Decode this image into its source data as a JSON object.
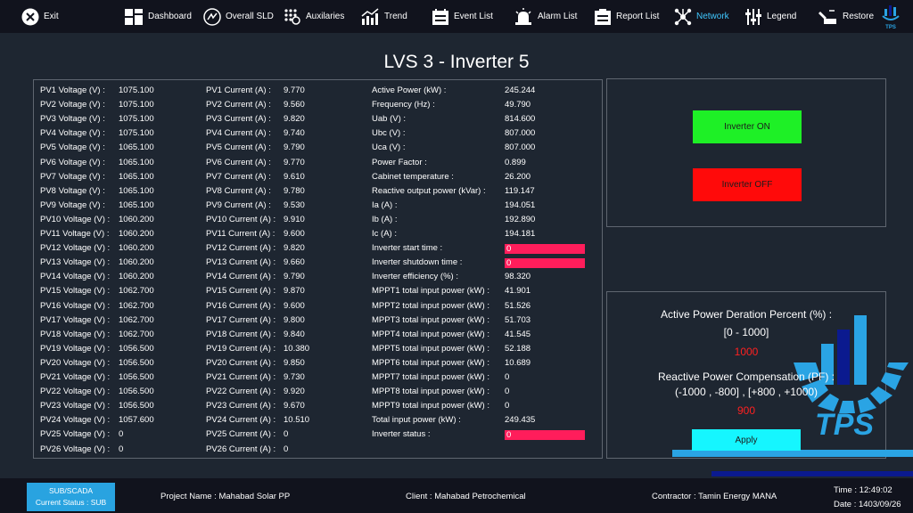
{
  "toolbar": {
    "items": [
      {
        "label": "Exit",
        "icon": "close-icon"
      },
      {
        "label": "Dashboard",
        "icon": "dashboard-icon"
      },
      {
        "label": "Overall SLD",
        "icon": "sld-icon"
      },
      {
        "label": "Auxilaries",
        "icon": "auxiliaries-icon"
      },
      {
        "label": "Trend",
        "icon": "trend-icon"
      },
      {
        "label": "Event List",
        "icon": "event-list-icon"
      },
      {
        "label": "Alarm List",
        "icon": "alarm-icon"
      },
      {
        "label": "Report List",
        "icon": "report-icon"
      },
      {
        "label": "Network",
        "icon": "network-icon"
      },
      {
        "label": "Legend",
        "icon": "legend-icon"
      },
      {
        "label": "Restore",
        "icon": "restore-icon"
      }
    ],
    "logo_text": "TPS"
  },
  "title": "LVS 3 - Inverter 5",
  "pv_voltages": [
    {
      "label": "PV1 Voltage (V) :",
      "value": "1075.100"
    },
    {
      "label": "PV2 Voltage (V) :",
      "value": "1075.100"
    },
    {
      "label": "PV3 Voltage (V) :",
      "value": "1075.100"
    },
    {
      "label": "PV4 Voltage (V) :",
      "value": "1075.100"
    },
    {
      "label": "PV5 Voltage (V) :",
      "value": "1065.100"
    },
    {
      "label": "PV6 Voltage (V) :",
      "value": "1065.100"
    },
    {
      "label": "PV7 Voltage (V) :",
      "value": "1065.100"
    },
    {
      "label": "PV8 Voltage (V) :",
      "value": "1065.100"
    },
    {
      "label": "PV9 Voltage (V) :",
      "value": "1065.100"
    },
    {
      "label": "PV10 Voltage (V) :",
      "value": "1060.200"
    },
    {
      "label": "PV11 Voltage (V) :",
      "value": "1060.200"
    },
    {
      "label": "PV12 Voltage (V) :",
      "value": "1060.200"
    },
    {
      "label": "PV13 Voltage (V) :",
      "value": "1060.200"
    },
    {
      "label": "PV14 Voltage (V) :",
      "value": "1060.200"
    },
    {
      "label": "PV15 Voltage (V) :",
      "value": "1062.700"
    },
    {
      "label": "PV16 Voltage (V) :",
      "value": "1062.700"
    },
    {
      "label": "PV17 Voltage (V) :",
      "value": "1062.700"
    },
    {
      "label": "PV18 Voltage (V) :",
      "value": "1062.700"
    },
    {
      "label": "PV19 Voltage (V) :",
      "value": "1056.500"
    },
    {
      "label": "PV20 Voltage (V) :",
      "value": "1056.500"
    },
    {
      "label": "PV21 Voltage (V) :",
      "value": "1056.500"
    },
    {
      "label": "PV22 Voltage (V) :",
      "value": "1056.500"
    },
    {
      "label": "PV23 Voltage (V) :",
      "value": "1056.500"
    },
    {
      "label": "PV24 Voltage (V) :",
      "value": "1057.600"
    },
    {
      "label": "PV25 Voltage (V) :",
      "value": "0"
    },
    {
      "label": "PV26 Voltage (V) :",
      "value": "0"
    }
  ],
  "pv_currents": [
    {
      "label": "PV1 Current (A) :",
      "value": "9.770"
    },
    {
      "label": "PV2 Current (A) :",
      "value": "9.560"
    },
    {
      "label": "PV3 Current (A) :",
      "value": "9.820"
    },
    {
      "label": "PV4 Current (A) :",
      "value": "9.740"
    },
    {
      "label": "PV5 Current (A) :",
      "value": "9.790"
    },
    {
      "label": "PV6 Current (A) :",
      "value": "9.770"
    },
    {
      "label": "PV7 Current (A) :",
      "value": "9.610"
    },
    {
      "label": "PV8 Current (A) :",
      "value": "9.780"
    },
    {
      "label": "PV9 Current (A) :",
      "value": "9.530"
    },
    {
      "label": "PV10 Current (A) :",
      "value": "9.910"
    },
    {
      "label": "PV11 Current (A) :",
      "value": "9.600"
    },
    {
      "label": "PV12 Current (A) :",
      "value": "9.820"
    },
    {
      "label": "PV13 Current (A) :",
      "value": "9.660"
    },
    {
      "label": "PV14 Current (A) :",
      "value": "9.790"
    },
    {
      "label": "PV15 Current (A) :",
      "value": "9.870"
    },
    {
      "label": "PV16 Current (A) :",
      "value": "9.600"
    },
    {
      "label": "PV17 Current (A) :",
      "value": "9.800"
    },
    {
      "label": "PV18 Current (A) :",
      "value": "9.840"
    },
    {
      "label": "PV19 Current (A) :",
      "value": "10.380"
    },
    {
      "label": "PV20 Current (A) :",
      "value": "9.850"
    },
    {
      "label": "PV21 Current (A) :",
      "value": "9.730"
    },
    {
      "label": "PV22 Current (A) :",
      "value": "9.920"
    },
    {
      "label": "PV23 Current (A) :",
      "value": "9.670"
    },
    {
      "label": "PV24 Current (A) :",
      "value": "10.510"
    },
    {
      "label": "PV25 Current (A) :",
      "value": "0"
    },
    {
      "label": "PV26 Current (A) :",
      "value": "0"
    }
  ],
  "measurements": [
    {
      "label": "Active Power (kW) :",
      "value": "245.244"
    },
    {
      "label": "Frequency (Hz) :",
      "value": "49.790"
    },
    {
      "label": "Uab (V) :",
      "value": "814.600"
    },
    {
      "label": "Ubc (V) :",
      "value": "807.000"
    },
    {
      "label": "Uca (V) :",
      "value": "807.000"
    },
    {
      "label": "Power Factor :",
      "value": "0.899"
    },
    {
      "label": "Cabinet temperature :",
      "value": "26.200"
    },
    {
      "label": "Reactive output power (kVar) :",
      "value": "119.147"
    },
    {
      "label": "Ia (A) :",
      "value": "194.051"
    },
    {
      "label": "Ib (A) :",
      "value": "192.890"
    },
    {
      "label": "Ic (A) :",
      "value": "194.181"
    },
    {
      "label": "Inverter start time :",
      "value": "0",
      "highlight": true
    },
    {
      "label": "Inverter shutdown time :",
      "value": "0",
      "highlight": true
    },
    {
      "label": "Inverter efficiency (%) :",
      "value": "98.320"
    },
    {
      "label": "MPPT1 total input power (kW) :",
      "value": "41.901"
    },
    {
      "label": "MPPT2 total input power (kW) :",
      "value": "51.526"
    },
    {
      "label": "MPPT3 total input power (kW) :",
      "value": "51.703"
    },
    {
      "label": "MPPT4 total input power (kW) :",
      "value": "41.545"
    },
    {
      "label": "MPPT5 total input power (kW) :",
      "value": "52.188"
    },
    {
      "label": "MPPT6 total input power (kW) :",
      "value": "10.689"
    },
    {
      "label": "MPPT7 total input power (kW) :",
      "value": "0"
    },
    {
      "label": "MPPT8 total input power (kW) :",
      "value": "0"
    },
    {
      "label": "MPPT9 total input power (kW) :",
      "value": "0"
    },
    {
      "label": "Total input power (kW) :",
      "value": "249.435"
    },
    {
      "label": "Inverter status :",
      "value": "0",
      "highlight": true
    }
  ],
  "commands": {
    "on_label": "Inverter ON",
    "off_label": "Inverter OFF"
  },
  "setpoints": {
    "active_label": "Active Power Deration Percent (%) :",
    "active_range": "[0 - 1000]",
    "active_value": "1000",
    "reactive_label": "Reactive Power Compensation (PF) :",
    "reactive_range": "(-1000 , -800] , [+800 , +1000)",
    "reactive_value": "900",
    "apply_label": "Apply"
  },
  "footer": {
    "badge_line1": "SUB/SCADA",
    "badge_line2": "Current Status : SUB",
    "project": "Project Name : Mahabad Solar PP",
    "client": "Client : Mahabad Petrochemical",
    "contractor": "Contractor : Tamin Energy MANA",
    "time": "Time : 12:49:02",
    "date": "Date : 1403/09/26"
  },
  "colors": {
    "background": "#1e2631",
    "toolbar": "#11131d",
    "highlight_bar": "#ff1d5b",
    "on_button": "#1ef026",
    "off_button": "#ff0a0a",
    "apply_button": "#15f6ff",
    "setpoint_value": "#ff2020",
    "network_active": "#40c8ff",
    "badge": "#29a3e0"
  }
}
